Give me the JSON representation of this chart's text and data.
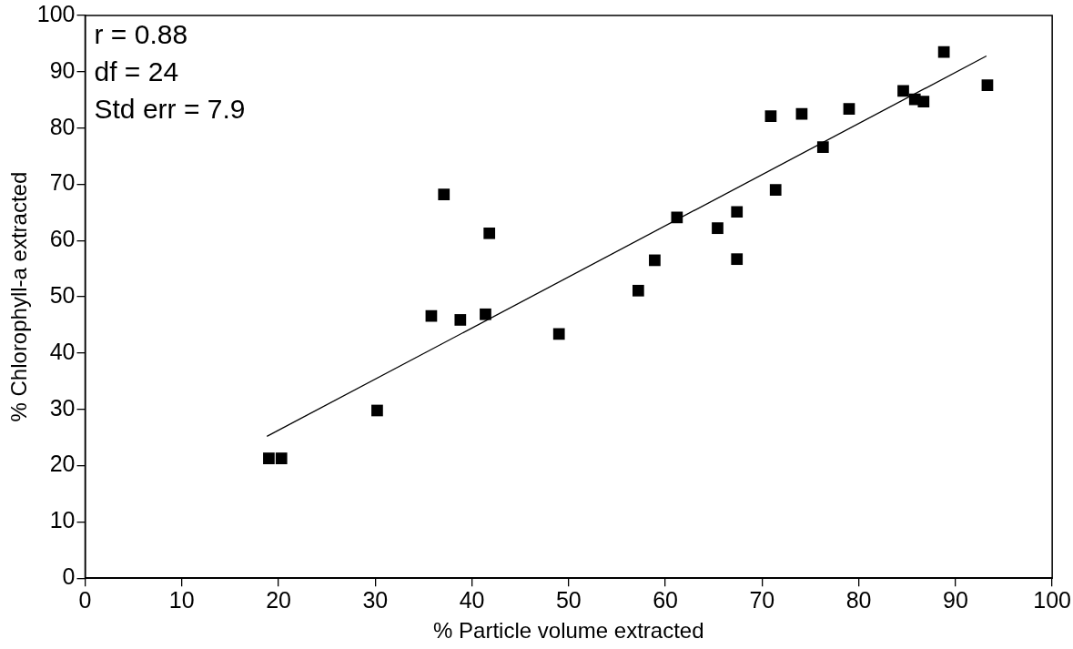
{
  "chart_data": {
    "type": "scatter",
    "xlabel": "% Particle volume extracted",
    "ylabel": "% Chlorophyll-a extracted",
    "annotations": [
      "r = 0.88",
      "df = 24",
      "Std err = 7.9"
    ],
    "xlim": [
      0,
      100
    ],
    "xticks": [
      0,
      10,
      20,
      30,
      40,
      50,
      60,
      70,
      80,
      90,
      100
    ],
    "ylim": [
      0,
      100
    ],
    "yticks": [
      0,
      10,
      20,
      30,
      40,
      50,
      60,
      70,
      80,
      90,
      100
    ],
    "grid": false,
    "legend": false,
    "marker": "square",
    "series": [
      {
        "type": "scatter",
        "color": "#000000",
        "x": [
          19,
          20.3,
          30.2,
          35.8,
          37.1,
          38.8,
          41.4,
          41.8,
          49,
          57.2,
          58.9,
          61.2,
          65.4,
          67.4,
          67.4,
          70.9,
          71.4,
          74.1,
          76.3,
          79,
          84.6,
          85.8,
          86.7,
          88.8,
          93.3
        ],
        "values": [
          21.3,
          21.3,
          29.8,
          46.6,
          68.2,
          45.9,
          46.9,
          61.3,
          43.4,
          51.1,
          56.5,
          64.1,
          62.2,
          65.1,
          56.7,
          82.1,
          69,
          82.5,
          76.6,
          83.4,
          86.6,
          85.1,
          84.7,
          93.5,
          87.6
        ]
      },
      {
        "type": "line",
        "color": "#000000",
        "marker": "none",
        "x": [
          18.8,
          93.2
        ],
        "values": [
          25.2,
          92.8
        ]
      }
    ]
  }
}
